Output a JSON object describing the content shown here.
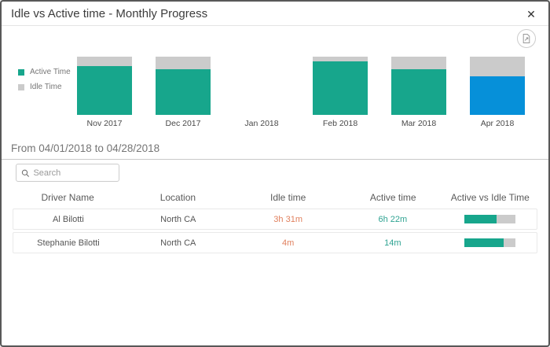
{
  "dialog": {
    "title": "Idle vs Active time - Monthly Progress",
    "close_label": "✕"
  },
  "colors": {
    "active": "#17A68C",
    "idle": "#CBCBCB",
    "highlight": "#0690D9",
    "idle_text": "#E0805E",
    "active_text": "#2FA392"
  },
  "chart_data": {
    "type": "bar",
    "stacked": true,
    "value_unit": "percent of month total",
    "categories": [
      "Nov 2017",
      "Dec 2017",
      "Jan 2018",
      "Feb 2018",
      "Mar 2018",
      "Apr 2018"
    ],
    "series": [
      {
        "name": "Active Time",
        "values": [
          84,
          78,
          null,
          92,
          79,
          66
        ]
      },
      {
        "name": "Idle Time",
        "values": [
          16,
          22,
          null,
          8,
          21,
          34
        ]
      }
    ],
    "highlighted_category": "Apr 2018",
    "legend": [
      "Active Time",
      "Idle Time"
    ],
    "legend_position": "left",
    "grid": false,
    "title": "Idle vs Active time - Monthly Progress"
  },
  "period": {
    "label": "From 04/01/2018 to 04/28/2018"
  },
  "search": {
    "placeholder": "Search"
  },
  "table": {
    "columns": [
      "Driver Name",
      "Location",
      "Idle time",
      "Active time",
      "Active vs Idle Time"
    ],
    "rows": [
      {
        "driver": "Al Bilotti",
        "location": "North CA",
        "idle": "3h 31m",
        "active": "6h 22m",
        "active_pct": 64
      },
      {
        "driver": "Stephanie Bilotti",
        "location": "North CA",
        "idle": "4m",
        "active": "14m",
        "active_pct": 78
      }
    ]
  }
}
